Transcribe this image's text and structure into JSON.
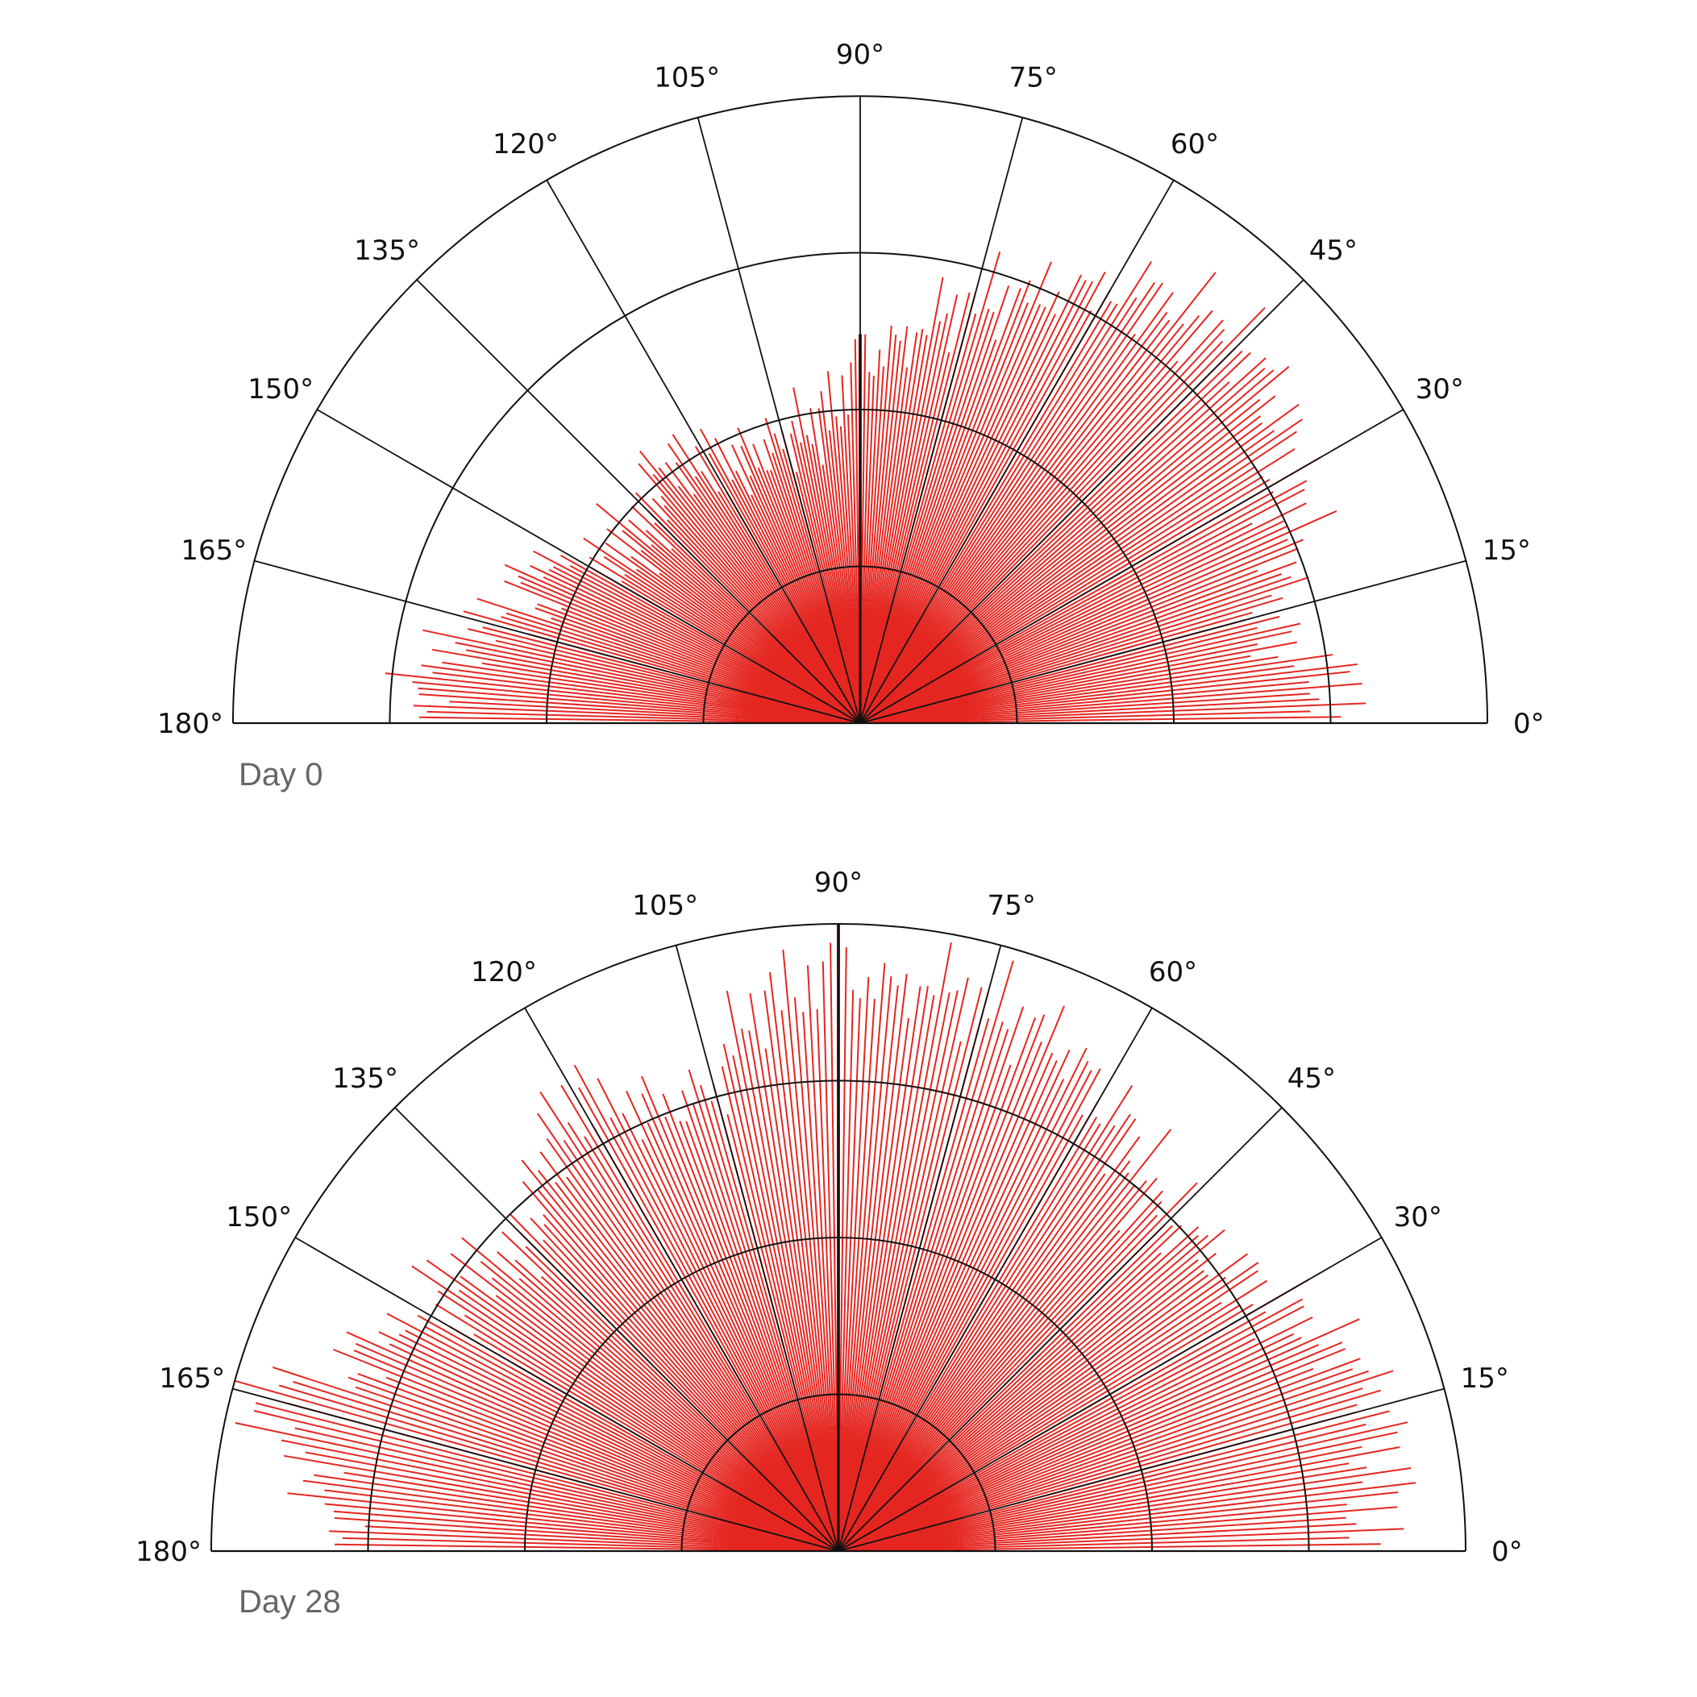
{
  "chart_data": [
    {
      "type": "polar-rose",
      "panel_label": "Day 0",
      "angle_tick_labels": [
        "0°",
        "15°",
        "30°",
        "45°",
        "60°",
        "75°",
        "90°",
        "105°",
        "120°",
        "135°",
        "150°",
        "165°",
        "180°"
      ],
      "angle_ticks": [
        0,
        15,
        30,
        45,
        60,
        75,
        90,
        105,
        120,
        135,
        150,
        165,
        180
      ],
      "angle_range": [
        0,
        180
      ],
      "radial_range": [
        0,
        1
      ],
      "radial_gridlines": [
        0.25,
        0.5,
        0.75,
        1.0
      ],
      "radial_tick_labels": "none",
      "ray_color": "#e52620",
      "profile": {
        "angles": [
          0,
          5,
          10,
          15,
          20,
          25,
          30,
          35,
          40,
          45,
          50,
          55,
          60,
          65,
          70,
          75,
          80,
          85,
          90,
          95,
          100,
          105,
          110,
          115,
          120,
          125,
          130,
          135,
          140,
          145,
          150,
          155,
          160,
          165,
          170,
          175,
          180
        ],
        "radii": [
          0.72,
          0.78,
          0.68,
          0.67,
          0.73,
          0.77,
          0.78,
          0.82,
          0.85,
          0.86,
          0.84,
          0.83,
          0.8,
          0.76,
          0.72,
          0.7,
          0.65,
          0.6,
          0.58,
          0.5,
          0.48,
          0.47,
          0.46,
          0.46,
          0.48,
          0.5,
          0.52,
          0.46,
          0.48,
          0.46,
          0.5,
          0.6,
          0.55,
          0.62,
          0.66,
          0.72,
          0.68
        ]
      },
      "spike": {
        "angle": 90,
        "radius": 0.62
      }
    },
    {
      "type": "polar-rose",
      "panel_label": "Day 28",
      "angle_tick_labels": [
        "0°",
        "15°",
        "30°",
        "45°",
        "60°",
        "75°",
        "90°",
        "105°",
        "120°",
        "135°",
        "150°",
        "165°",
        "180°"
      ],
      "angle_ticks": [
        0,
        15,
        30,
        45,
        60,
        75,
        90,
        105,
        120,
        135,
        150,
        165,
        180
      ],
      "angle_range": [
        0,
        180
      ],
      "radial_range": [
        0,
        1
      ],
      "radial_gridlines": [
        0.25,
        0.5,
        0.75,
        1.0
      ],
      "radial_tick_labels": "none",
      "ray_color": "#e52620",
      "profile": {
        "angles": [
          0,
          5,
          10,
          15,
          20,
          25,
          30,
          35,
          40,
          45,
          50,
          55,
          60,
          65,
          70,
          75,
          80,
          85,
          90,
          95,
          100,
          105,
          110,
          115,
          120,
          125,
          130,
          135,
          140,
          145,
          150,
          155,
          160,
          165,
          170,
          175,
          180
        ],
        "radii": [
          0.82,
          0.87,
          0.88,
          0.89,
          0.88,
          0.83,
          0.8,
          0.77,
          0.76,
          0.75,
          0.76,
          0.81,
          0.83,
          0.88,
          0.89,
          0.91,
          0.92,
          0.9,
          0.93,
          0.9,
          0.87,
          0.76,
          0.76,
          0.78,
          0.84,
          0.8,
          0.75,
          0.7,
          0.71,
          0.77,
          0.72,
          0.83,
          0.82,
          0.98,
          0.87,
          0.82,
          0.78
        ]
      },
      "spike": {
        "angle": 90,
        "radius": 1.0
      }
    }
  ]
}
